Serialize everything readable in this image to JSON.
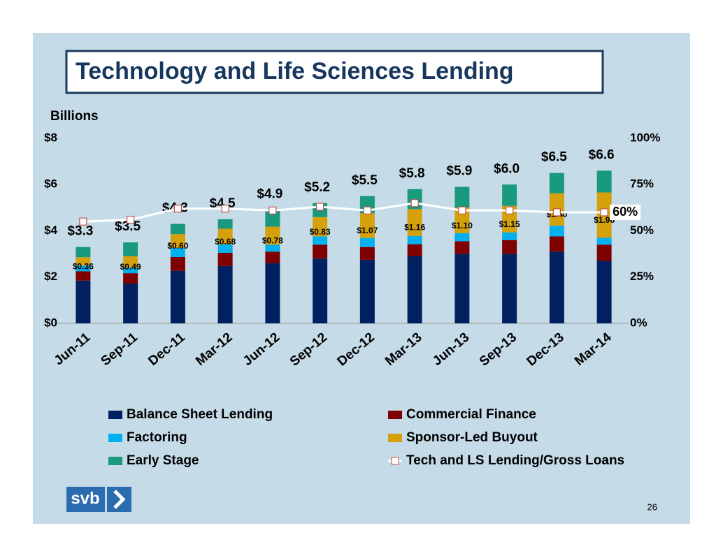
{
  "chart_data": {
    "type": "bar",
    "stacked": true,
    "title": "Technology and Life Sciences Lending",
    "y_label": "Billions",
    "page_number": "26",
    "logo_text": "svb",
    "categories": [
      "Jun-11",
      "Sep-11",
      "Dec-11",
      "Mar-12",
      "Jun-12",
      "Sep-12",
      "Dec-12",
      "Mar-13",
      "Jun-13",
      "Sep-13",
      "Dec-13",
      "Mar-14"
    ],
    "series": [
      {
        "name": "Balance Sheet Lending",
        "color": "#002060",
        "values": [
          1.85,
          1.72,
          2.27,
          2.48,
          2.6,
          2.8,
          2.75,
          2.9,
          3.0,
          3.0,
          3.1,
          2.7
        ]
      },
      {
        "name": "Commercial Finance",
        "color": "#7f0000",
        "values": [
          0.4,
          0.45,
          0.6,
          0.57,
          0.5,
          0.6,
          0.55,
          0.52,
          0.55,
          0.6,
          0.66,
          0.7
        ]
      },
      {
        "name": "Factoring",
        "color": "#00b0f0",
        "values": [
          0.25,
          0.24,
          0.39,
          0.36,
          0.3,
          0.36,
          0.39,
          0.36,
          0.35,
          0.33,
          0.46,
          0.3
        ]
      },
      {
        "name": "Sponsor-Led Buyout",
        "color": "#d4a00c",
        "values": [
          0.36,
          0.49,
          0.6,
          0.68,
          0.78,
          0.83,
          1.07,
          1.16,
          1.1,
          1.15,
          1.4,
          1.96
        ],
        "value_labels": [
          "$0.36",
          "$0.49",
          "$0.60",
          "$0.68",
          "$0.78",
          "$0.83",
          "$1.07",
          "$1.16",
          "$1.10",
          "$1.15",
          "$1.40",
          "$1.96"
        ]
      },
      {
        "name": "Early Stage",
        "color": "#1a9a7c",
        "values": [
          0.44,
          0.6,
          0.44,
          0.41,
          0.72,
          0.61,
          0.74,
          0.86,
          0.9,
          0.92,
          0.88,
          0.94
        ]
      },
      {
        "name": "Tech and LS Lending/Gross Loans",
        "type": "line",
        "axis": "y2",
        "color": "#ffffff",
        "marker_color": "#c0504d",
        "values": [
          55,
          56,
          62,
          62,
          61,
          63,
          61,
          65,
          61,
          61,
          60,
          60
        ],
        "value_labels": [
          null,
          null,
          null,
          null,
          null,
          null,
          null,
          null,
          null,
          null,
          null,
          "60%"
        ]
      }
    ],
    "totals": [
      3.3,
      3.5,
      4.3,
      4.5,
      4.9,
      5.2,
      5.5,
      5.8,
      5.9,
      6.0,
      6.5,
      6.6
    ],
    "total_labels": [
      "$3.3",
      "$3.5",
      "$4.3",
      "$4.5",
      "$4.9",
      "$5.2",
      "$5.5",
      "$5.8",
      "$5.9",
      "$6.0",
      "$6.5",
      "$6.6"
    ],
    "ylim": [
      0,
      8
    ],
    "yticks": [
      {
        "value": 0,
        "label": "$0"
      },
      {
        "value": 2,
        "label": "$2"
      },
      {
        "value": 4,
        "label": "$4"
      },
      {
        "value": 6,
        "label": "$6"
      },
      {
        "value": 8,
        "label": "$8"
      }
    ],
    "y2lim": [
      0,
      100
    ],
    "y2ticks": [
      {
        "value": 0,
        "label": "0%"
      },
      {
        "value": 25,
        "label": "25%"
      },
      {
        "value": 50,
        "label": "50%"
      },
      {
        "value": 75,
        "label": "75%"
      },
      {
        "value": 100,
        "label": "100%"
      }
    ]
  }
}
